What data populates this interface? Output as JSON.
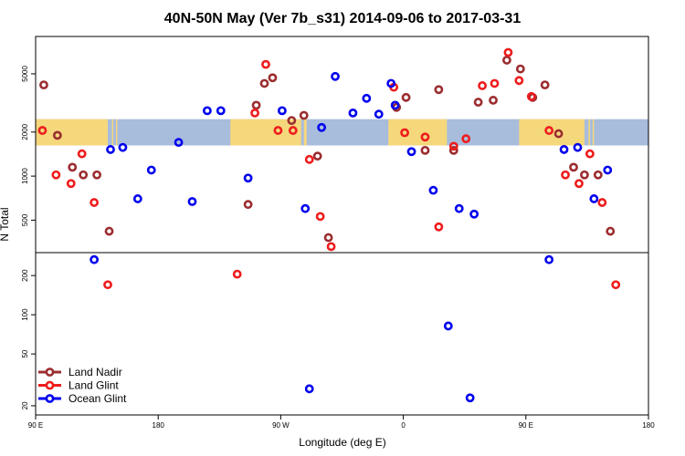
{
  "chart_data": {
    "type": "scatter",
    "title": "40N-50N May (Ver 7b_s31)   2014-09-06 to 2017-03-31",
    "xlabel": "Longitude (deg E)",
    "ylabel": "N Total",
    "x_ticks": [
      {
        "value": 90,
        "label": "90 E"
      },
      {
        "value": 180,
        "label": "180"
      },
      {
        "value": 270,
        "label": "90 W"
      },
      {
        "value": 360,
        "label": "0"
      },
      {
        "value": 450,
        "label": "90 E"
      },
      {
        "value": 540,
        "label": "180"
      }
    ],
    "xlim": [
      90,
      540
    ],
    "upper_panel": {
      "scale": "log",
      "ylim": [
        300,
        9000
      ],
      "y_ticks": [
        500,
        1000,
        2000,
        5000
      ]
    },
    "lower_panel": {
      "scale": "log",
      "ylim": [
        17,
        300
      ],
      "y_ticks": [
        20,
        50,
        100,
        200
      ]
    },
    "map_strip": {
      "y_range": [
        1620,
        2450
      ],
      "ocean_color": "#A8BCDC",
      "land_color": "#F5D77C",
      "land_spans": [
        [
          90,
          143
        ],
        [
          146,
          147
        ],
        [
          149,
          150
        ],
        [
          233,
          285
        ],
        [
          287,
          289
        ],
        [
          349,
          392
        ],
        [
          445,
          493
        ],
        [
          496,
          497
        ],
        [
          499,
          500
        ]
      ]
    },
    "legend": {
      "position": "bottom-left"
    },
    "series": [
      {
        "name": "Land Nadir",
        "color": "#9B2D30",
        "points": [
          [
            96,
            4200
          ],
          [
            106,
            1900
          ],
          [
            117,
            1150
          ],
          [
            125,
            1020
          ],
          [
            135,
            1020
          ],
          [
            144,
            420
          ],
          [
            246,
            640
          ],
          [
            252,
            3050
          ],
          [
            258,
            4300
          ],
          [
            264,
            4700
          ],
          [
            278,
            2400
          ],
          [
            287,
            2600
          ],
          [
            297,
            1370
          ],
          [
            305,
            380
          ],
          [
            355,
            2950
          ],
          [
            362,
            3450
          ],
          [
            376,
            1500
          ],
          [
            386,
            3900
          ],
          [
            397,
            1500
          ],
          [
            415,
            3200
          ],
          [
            426,
            3300
          ],
          [
            436,
            6200
          ],
          [
            446,
            5400
          ],
          [
            455,
            3450
          ],
          [
            464,
            4200
          ],
          [
            474,
            1950
          ],
          [
            485,
            1150
          ],
          [
            493,
            1020
          ],
          [
            503,
            1020
          ],
          [
            512,
            420
          ]
        ]
      },
      {
        "name": "Land Glint",
        "color": "#EE1C1C",
        "points": [
          [
            95,
            2050
          ],
          [
            105,
            1020
          ],
          [
            116,
            890
          ],
          [
            124,
            1420
          ],
          [
            133,
            660
          ],
          [
            143,
            170
          ],
          [
            238,
            205
          ],
          [
            251,
            2700
          ],
          [
            259,
            5800
          ],
          [
            268,
            2050
          ],
          [
            279,
            2050
          ],
          [
            291,
            1300
          ],
          [
            299,
            530
          ],
          [
            307,
            330
          ],
          [
            353,
            4050
          ],
          [
            361,
            1980
          ],
          [
            376,
            1850
          ],
          [
            386,
            450
          ],
          [
            397,
            1600
          ],
          [
            406,
            1800
          ],
          [
            418,
            4150
          ],
          [
            427,
            4300
          ],
          [
            437,
            7000
          ],
          [
            445,
            4500
          ],
          [
            454,
            3500
          ],
          [
            467,
            2050
          ],
          [
            479,
            1020
          ],
          [
            489,
            890
          ],
          [
            497,
            1420
          ],
          [
            506,
            660
          ],
          [
            516,
            170
          ]
        ]
      },
      {
        "name": "Ocean Glint",
        "color": "#0000EE",
        "points": [
          [
            133,
            265
          ],
          [
            145,
            1520
          ],
          [
            154,
            1570
          ],
          [
            165,
            700
          ],
          [
            175,
            1100
          ],
          [
            195,
            1700
          ],
          [
            205,
            670
          ],
          [
            216,
            2800
          ],
          [
            226,
            2800
          ],
          [
            246,
            970
          ],
          [
            271,
            2800
          ],
          [
            288,
            600
          ],
          [
            291,
            27
          ],
          [
            300,
            2150
          ],
          [
            310,
            4800
          ],
          [
            323,
            2700
          ],
          [
            333,
            3400
          ],
          [
            342,
            2650
          ],
          [
            351,
            4300
          ],
          [
            354,
            3050
          ],
          [
            366,
            1470
          ],
          [
            382,
            800
          ],
          [
            393,
            82
          ],
          [
            401,
            600
          ],
          [
            409,
            23
          ],
          [
            412,
            550
          ],
          [
            467,
            265
          ],
          [
            478,
            1520
          ],
          [
            488,
            1570
          ],
          [
            500,
            700
          ],
          [
            510,
            1100
          ]
        ]
      }
    ]
  }
}
